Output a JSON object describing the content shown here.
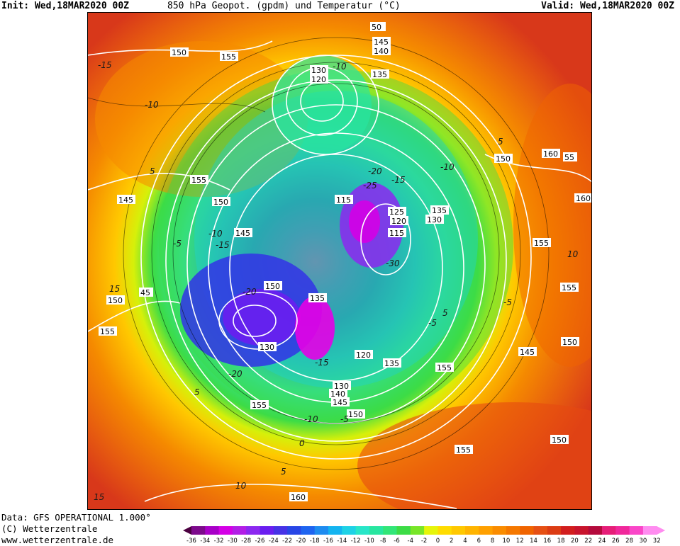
{
  "header": {
    "init": "Init: Wed,18MAR2020 00Z",
    "title": "850 hPa Geopot. (gpdm) und Temperatur (°C)",
    "valid": "Valid: Wed,18MAR2020 00Z"
  },
  "footer": {
    "data_line": "Data: GFS OPERATIONAL 1.000°",
    "copyright": "(C) Wetterzentrale",
    "url": "www.wetterzentrale.de"
  },
  "map": {
    "height_labels": [
      "50",
      "145",
      "140",
      "135",
      "130",
      "120",
      "150",
      "155",
      "155",
      "150",
      "145",
      "150",
      "155",
      "145",
      "150",
      "115",
      "125",
      "120",
      "115",
      "135",
      "130",
      "135",
      "130",
      "125",
      "120",
      "135",
      "130",
      "140",
      "145",
      "150",
      "155",
      "155",
      "160",
      "150",
      "155",
      "160",
      "155",
      "150",
      "145",
      "150",
      "155",
      "55",
      "160",
      "45"
    ],
    "temperature_labels": [
      "-15",
      "-10",
      "5",
      "15",
      "-10",
      "-5",
      "5",
      "-10",
      "-15",
      "-20",
      "-25",
      "-30",
      "-20",
      "-15",
      "-10",
      "-5",
      "5",
      "-20",
      "-15",
      "-10",
      "-5",
      "5",
      "10",
      "15",
      "-5",
      "0",
      "5",
      "10"
    ]
  },
  "legend": {
    "ticks": [
      "-36",
      "-34",
      "-32",
      "-30",
      "-28",
      "-26",
      "-24",
      "-22",
      "-20",
      "-18",
      "-16",
      "-14",
      "-12",
      "-10",
      "-8",
      "-6",
      "-4",
      "-2",
      "0",
      "2",
      "4",
      "6",
      "8",
      "10",
      "12",
      "14",
      "16",
      "18",
      "20",
      "22",
      "24",
      "26",
      "28",
      "30",
      "32"
    ],
    "colors": [
      "#4b0040",
      "#7d0a8c",
      "#a800c8",
      "#d400e6",
      "#b21ee6",
      "#8c28f0",
      "#6a1ef0",
      "#4632e6",
      "#2846e6",
      "#1e64f0",
      "#1e8cf0",
      "#14b4f0",
      "#1ed2e6",
      "#28e6c8",
      "#28e6a0",
      "#32e678",
      "#3cdc46",
      "#78e628",
      "#e6f50a",
      "#ffdc00",
      "#ffc800",
      "#ffb400",
      "#ffa000",
      "#fa8c00",
      "#f57800",
      "#f06400",
      "#e65014",
      "#dc3c14",
      "#d21e1e",
      "#c8142d",
      "#b40a3c",
      "#e61e78",
      "#f0289b",
      "#fa46c8",
      "#ff8cf0"
    ]
  }
}
